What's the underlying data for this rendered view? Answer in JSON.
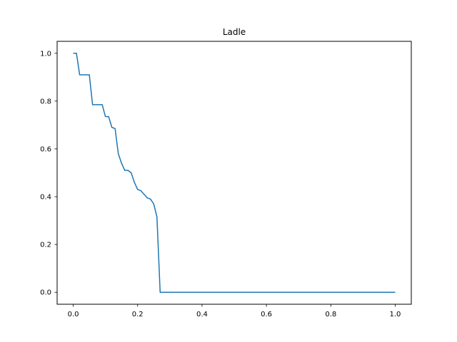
{
  "chart_data": {
    "type": "line",
    "title": "Ladle",
    "xlabel": "",
    "ylabel": "",
    "xlim": [
      -0.05,
      1.05
    ],
    "ylim": [
      -0.05,
      1.05
    ],
    "xticks": [
      0.0,
      0.2,
      0.4,
      0.6,
      0.8,
      1.0
    ],
    "xtick_labels": [
      "0.0",
      "0.2",
      "0.4",
      "0.6",
      "0.8",
      "1.0"
    ],
    "yticks": [
      0.0,
      0.2,
      0.4,
      0.6,
      0.8,
      1.0
    ],
    "ytick_labels": [
      "0.0",
      "0.2",
      "0.4",
      "0.6",
      "0.8",
      "1.0"
    ],
    "grid": false,
    "series": [
      {
        "color": "#1f77b4",
        "x": [
          0.0,
          0.01,
          0.02,
          0.05,
          0.06,
          0.07,
          0.09,
          0.1,
          0.11,
          0.12,
          0.13,
          0.14,
          0.15,
          0.16,
          0.17,
          0.18,
          0.19,
          0.2,
          0.21,
          0.22,
          0.23,
          0.24,
          0.25,
          0.26,
          0.27,
          1.0
        ],
        "y": [
          1.0,
          1.0,
          0.91,
          0.91,
          0.785,
          0.785,
          0.785,
          0.735,
          0.735,
          0.69,
          0.685,
          0.58,
          0.54,
          0.51,
          0.51,
          0.5,
          0.46,
          0.43,
          0.425,
          0.41,
          0.395,
          0.39,
          0.37,
          0.315,
          0.0,
          0.0
        ]
      }
    ]
  }
}
